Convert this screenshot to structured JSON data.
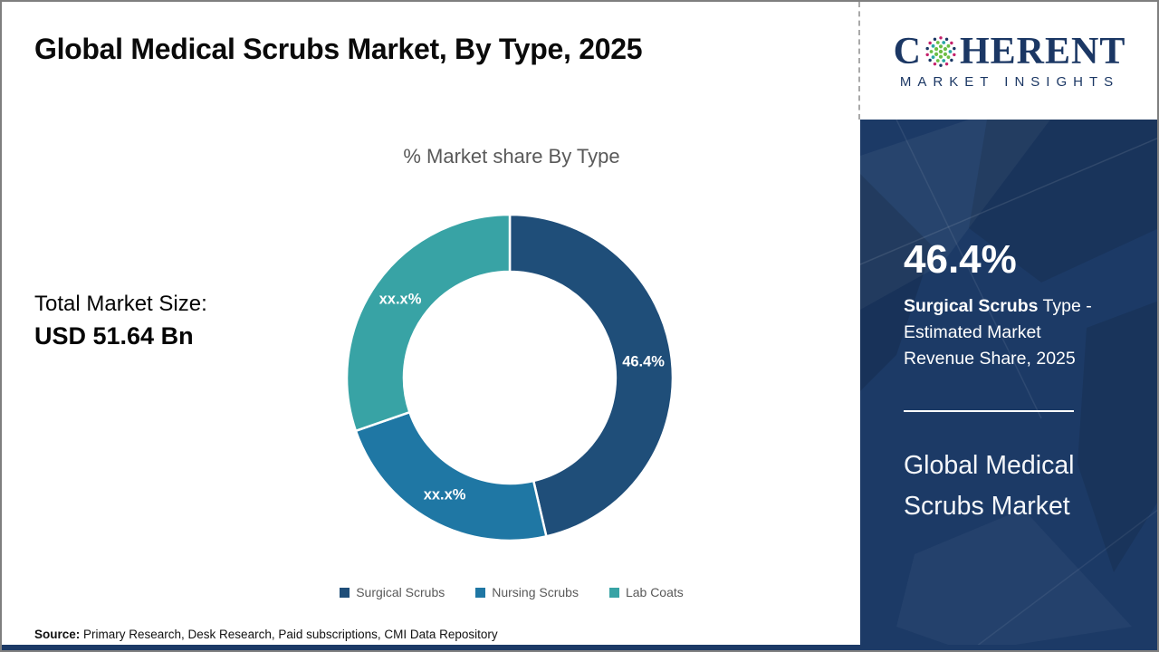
{
  "header": {
    "title": "Global Medical Scrubs Market, By Type, 2025"
  },
  "logo": {
    "name_pre": "C",
    "name_post": "HERENT",
    "subtitle": "MARKET INSIGHTS",
    "globe_colors": {
      "green": "#6cbe45",
      "teal": "#2aa7a3",
      "magenta": "#c4216b",
      "navy": "#1b3764"
    }
  },
  "chart_data": {
    "type": "pie",
    "subtype": "donut",
    "title": "% Market share By Type",
    "categories": [
      "Surgical Scrubs",
      "Nursing Scrubs",
      "Lab Coats"
    ],
    "values": [
      46.4,
      23.3,
      30.3
    ],
    "labels": [
      "46.4%",
      "xx.x%",
      "xx.x%"
    ],
    "colors": [
      "#1f4e79",
      "#1f77a4",
      "#38a3a5"
    ],
    "start_angle_deg": 0,
    "direction": "clockwise",
    "inner_radius_ratio": 0.65,
    "legend_position": "bottom",
    "label_color": "#ffffff"
  },
  "stats": {
    "total_label": "Total Market Size:",
    "total_value": "USD 51.64 Bn"
  },
  "sidebar": {
    "highlight_value": "46.4%",
    "desc_bold": "Surgical Scrubs",
    "desc_line1_rest": " Type -",
    "desc_line2": "Estimated Market",
    "desc_line3": "Revenue Share, 2025",
    "market_name_line1": "Global Medical",
    "market_name_line2": "Scrubs Market",
    "accent_color": "#1c3a66"
  },
  "footer": {
    "source_label": "Source:",
    "source_text": " Primary Research, Desk Research, Paid subscriptions, CMI Data Repository"
  }
}
